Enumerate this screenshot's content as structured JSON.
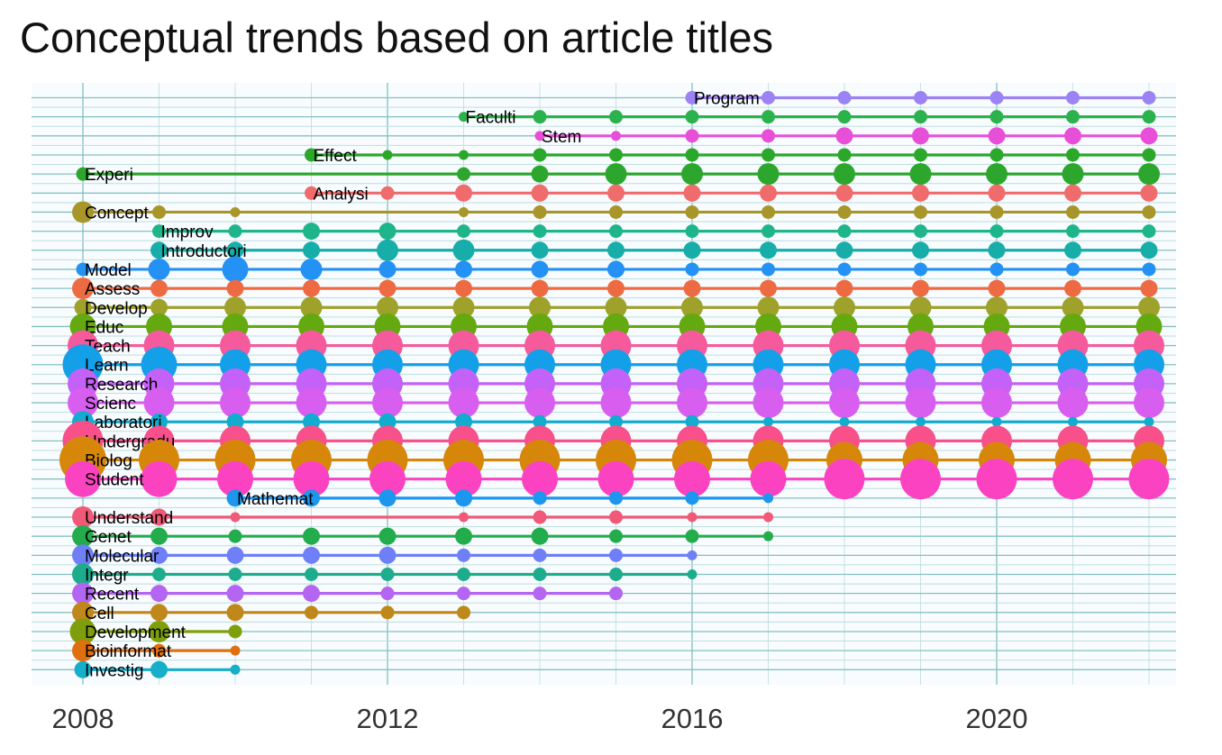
{
  "chart_data": {
    "type": "scatter",
    "title": "Conceptual trends based on article titles",
    "xlabel": "",
    "ylabel": "",
    "x_ticks": [
      2008,
      2012,
      2016,
      2020
    ],
    "xlim": [
      2007.4,
      2022.7
    ],
    "grid": true,
    "legend": "none",
    "series": [
      {
        "name": "Program",
        "color": "#9B82F5",
        "start": 2016,
        "end": 2022,
        "sizes": [
          2,
          2,
          2,
          2,
          2,
          2,
          2
        ]
      },
      {
        "name": "Faculti",
        "color": "#2BB24C",
        "start": 2013,
        "end": 2022,
        "sizes": [
          1,
          2,
          2,
          2,
          2,
          2,
          2,
          2,
          2,
          2
        ]
      },
      {
        "name": "Stem",
        "color": "#E84FD8",
        "start": 2014,
        "end": 2022,
        "sizes": [
          1,
          1,
          2,
          2,
          3,
          3,
          3,
          3,
          3
        ]
      },
      {
        "name": "Effect",
        "color": "#2BA82A",
        "start": 2011,
        "end": 2022,
        "sizes": [
          2,
          1,
          1,
          2,
          2,
          2,
          2,
          2,
          2,
          2,
          2,
          2
        ]
      },
      {
        "name": "Experi",
        "color": "#2CA62C",
        "start": 2008,
        "end": 2022,
        "sizes": [
          2,
          0,
          0,
          0,
          0,
          2,
          3,
          4,
          4,
          4,
          4,
          4,
          4,
          4,
          4
        ]
      },
      {
        "name": "Analysi",
        "color": "#F06B6B",
        "start": 2011,
        "end": 2022,
        "sizes": [
          2,
          2,
          3,
          3,
          3,
          3,
          3,
          3,
          3,
          3,
          3,
          3
        ]
      },
      {
        "name": "Concept",
        "color": "#A8962B",
        "start": 2008,
        "end": 2022,
        "sizes": [
          4,
          2,
          1,
          0,
          0,
          1,
          2,
          2,
          2,
          2,
          2,
          2,
          2,
          2,
          2
        ]
      },
      {
        "name": "Improv",
        "color": "#1FB58A",
        "start": 2009,
        "end": 2022,
        "sizes": [
          2,
          2,
          3,
          3,
          2,
          2,
          2,
          2,
          2,
          2,
          2,
          2,
          2,
          2
        ]
      },
      {
        "name": "Introductori",
        "color": "#17ADA8",
        "start": 2009,
        "end": 2022,
        "sizes": [
          3,
          3,
          3,
          4,
          4,
          3,
          3,
          3,
          3,
          3,
          3,
          3,
          3,
          3
        ]
      },
      {
        "name": "Model",
        "color": "#2491F5",
        "start": 2008,
        "end": 2022,
        "sizes": [
          2,
          4,
          5,
          4,
          3,
          3,
          3,
          3,
          2,
          2,
          2,
          2,
          2,
          2,
          2
        ]
      },
      {
        "name": "Assess",
        "color": "#EE6A42",
        "start": 2008,
        "end": 2022,
        "sizes": [
          4,
          3,
          3,
          3,
          3,
          3,
          3,
          3,
          3,
          3,
          3,
          3,
          3,
          3,
          3
        ]
      },
      {
        "name": "Develop",
        "color": "#9EA12A",
        "start": 2008,
        "end": 2022,
        "sizes": [
          3,
          3,
          4,
          4,
          4,
          4,
          4,
          4,
          4,
          4,
          4,
          4,
          4,
          4,
          4
        ]
      },
      {
        "name": "Educ",
        "color": "#63A90F",
        "start": 2008,
        "end": 2022,
        "sizes": [
          5,
          5,
          5,
          5,
          5,
          5,
          5,
          5,
          5,
          5,
          5,
          5,
          5,
          5,
          5
        ]
      },
      {
        "name": "Teach",
        "color": "#F55A9C",
        "start": 2008,
        "end": 2022,
        "sizes": [
          6,
          6,
          6,
          6,
          6,
          6,
          6,
          6,
          6,
          6,
          6,
          6,
          6,
          6,
          6
        ]
      },
      {
        "name": "Learn",
        "color": "#13A0E8",
        "start": 2008,
        "end": 2022,
        "sizes": [
          8,
          7,
          6,
          6,
          6,
          6,
          6,
          6,
          6,
          6,
          6,
          6,
          6,
          6,
          6
        ]
      },
      {
        "name": "Research",
        "color": "#C461F7",
        "start": 2008,
        "end": 2022,
        "sizes": [
          6,
          6,
          6,
          6,
          6,
          6,
          6,
          6,
          6,
          6,
          6,
          6,
          6,
          6,
          6
        ]
      },
      {
        "name": "Scienc",
        "color": "#D85EF0",
        "start": 2008,
        "end": 2022,
        "sizes": [
          6,
          6,
          6,
          6,
          6,
          6,
          6,
          6,
          6,
          6,
          6,
          6,
          6,
          6,
          6
        ]
      },
      {
        "name": "Laboratori",
        "color": "#12ACCF",
        "start": 2008,
        "end": 2022,
        "sizes": [
          4,
          3,
          3,
          3,
          3,
          3,
          2,
          2,
          2,
          1,
          1,
          1,
          1,
          1,
          1
        ]
      },
      {
        "name": "Undergradu",
        "color": "#F7508A",
        "start": 2008,
        "end": 2022,
        "sizes": [
          8,
          6,
          6,
          6,
          6,
          6,
          6,
          6,
          6,
          6,
          6,
          6,
          6,
          6,
          6
        ]
      },
      {
        "name": "Biolog",
        "color": "#D6870A",
        "start": 2008,
        "end": 2022,
        "sizes": [
          9,
          8,
          8,
          8,
          8,
          8,
          8,
          8,
          8,
          8,
          7,
          7,
          7,
          7,
          7
        ]
      },
      {
        "name": "Student",
        "color": "#FB43C2",
        "start": 2008,
        "end": 2022,
        "sizes": [
          7,
          7,
          7,
          7,
          7,
          7,
          7,
          7,
          7,
          7,
          8,
          8,
          8,
          8,
          8
        ]
      },
      {
        "name": "Mathemat",
        "color": "#1D96EE",
        "start": 2010,
        "end": 2017,
        "sizes": [
          3,
          3,
          3,
          3,
          2,
          2,
          2,
          1
        ]
      },
      {
        "name": "Understand",
        "color": "#F05A78",
        "start": 2008,
        "end": 2017,
        "sizes": [
          4,
          3,
          1,
          0,
          0,
          1,
          2,
          2,
          1,
          1
        ]
      },
      {
        "name": "Genet",
        "color": "#22AC4C",
        "start": 2008,
        "end": 2017,
        "sizes": [
          4,
          3,
          2,
          3,
          3,
          3,
          3,
          2,
          2,
          1
        ]
      },
      {
        "name": "Molecular",
        "color": "#6E7FF7",
        "start": 2008,
        "end": 2016,
        "sizes": [
          4,
          3,
          3,
          3,
          3,
          2,
          2,
          2,
          1
        ]
      },
      {
        "name": "Integr",
        "color": "#1DAC8C",
        "start": 2008,
        "end": 2016,
        "sizes": [
          4,
          2,
          2,
          2,
          2,
          2,
          2,
          2,
          1
        ]
      },
      {
        "name": "Recent",
        "color": "#B465F2",
        "start": 2008,
        "end": 2015,
        "sizes": [
          4,
          3,
          3,
          3,
          2,
          2,
          2,
          2
        ]
      },
      {
        "name": "Cell",
        "color": "#C0871A",
        "start": 2008,
        "end": 2013,
        "sizes": [
          4,
          3,
          3,
          2,
          2,
          2
        ]
      },
      {
        "name": "Development",
        "color": "#7F9E0B",
        "start": 2008,
        "end": 2010,
        "sizes": [
          5,
          4,
          2
        ]
      },
      {
        "name": "Bioinformat",
        "color": "#E06F10",
        "start": 2008,
        "end": 2010,
        "sizes": [
          4,
          2,
          1
        ]
      },
      {
        "name": "Investig",
        "color": "#16AEC8",
        "start": 2008,
        "end": 2010,
        "sizes": [
          3,
          3,
          1
        ]
      }
    ]
  }
}
